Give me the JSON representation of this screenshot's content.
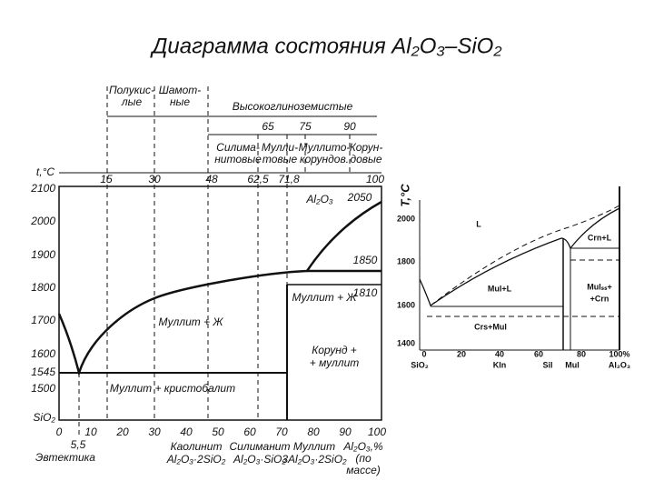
{
  "title": "Диаграмма состояния Al₂O₃–SiO₂",
  "left_diagram": {
    "class_labels": [
      [
        "Полукис-",
        "лые"
      ],
      [
        "Шамот-",
        "ные"
      ],
      [
        "Высокоглиноземистые"
      ]
    ],
    "subclass_percents": [
      "65",
      "75",
      "90"
    ],
    "subclass_labels": [
      [
        "Силима-",
        "нитовые"
      ],
      [
        "Мулли-",
        "товые"
      ],
      [
        "Муллито-",
        "корундов."
      ],
      [
        "Корун-",
        "довые"
      ]
    ],
    "boundary_ticks": [
      "15",
      "30",
      "48",
      "62,5",
      "71,8",
      "100"
    ],
    "y_axis_label": "t,°C",
    "y_ticks": [
      "2100",
      "2000",
      "1900",
      "1800",
      "1700",
      "1600",
      "1545",
      "1500",
      "SiO₂"
    ],
    "x_ticks": [
      "0",
      "10",
      "20",
      "30",
      "40",
      "50",
      "60",
      "70",
      "80",
      "90",
      "100"
    ],
    "eutectic_value": "5,5",
    "eutectic_label": "Эвтектика",
    "compounds": [
      [
        "Каолинит",
        "Al₂O₃·2SiO₂"
      ],
      [
        "Силиманит",
        "Al₂O₃·SiO₂"
      ],
      [
        "Муллит",
        "3Al₂O₃·2SiO₂"
      ]
    ],
    "x_axis_label": [
      "Al₂O₃,%",
      "(по",
      "массе)"
    ],
    "point_labels": [
      "Al₂O₃",
      "2050",
      "1850",
      "1810"
    ],
    "fields": [
      [
        "Муллит + Ж"
      ],
      [
        "Муллит + Ж"
      ],
      [
        "Муллит + кристобалит"
      ],
      [
        "Корунд +",
        "+ муллит"
      ]
    ]
  },
  "right_diagram": {
    "y_axis_label": "T,°C",
    "y_ticks": [
      "2000",
      "1800",
      "1600",
      "1400"
    ],
    "x_ticks": [
      "0",
      "20",
      "40",
      "60",
      "80",
      "100%"
    ],
    "compounds": [
      "SiO₂",
      "Kln",
      "Sil",
      "Mul",
      "Al₂O₃"
    ],
    "fields": [
      [
        "L"
      ],
      [
        "Crn+L"
      ],
      [
        "Mul+L"
      ],
      [
        "Mulₛₛ+",
        "+Crn"
      ],
      [
        "Crs+Mul"
      ]
    ]
  }
}
